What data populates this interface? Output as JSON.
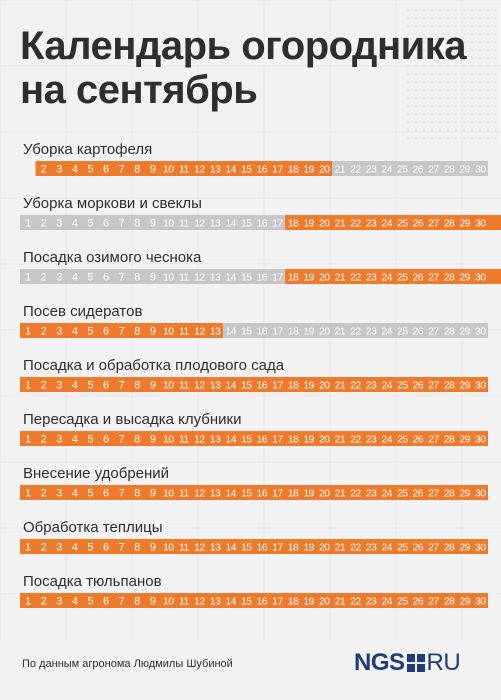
{
  "title": {
    "line1": "Календарь огородника",
    "line2": "на сентябрь"
  },
  "colors": {
    "active": "#f07a2c",
    "inactive": "#c7c7c7",
    "background": "#f2f2f2",
    "text": "#2e2e2e",
    "logo": "#1e3c78"
  },
  "chart_data": {
    "type": "calendar-gantt",
    "days": [
      2,
      3,
      4,
      5,
      6,
      7,
      8,
      9,
      10,
      11,
      12,
      13,
      14,
      15,
      16,
      17,
      18,
      19,
      20,
      21,
      22,
      23,
      24,
      25,
      26,
      27,
      28,
      29,
      30
    ],
    "tasks": [
      {
        "label": "Уборка картофеля",
        "first_day_shown": 2,
        "active_days": [
          2,
          20
        ]
      },
      {
        "label": "Уборка моркови и свеклы",
        "first_day_shown": 1,
        "active_days": [
          18,
          30
        ]
      },
      {
        "label": "Посадка озимого чеснока",
        "first_day_shown": 1,
        "active_days": [
          18,
          30
        ]
      },
      {
        "label": "Посев сидератов",
        "first_day_shown": 1,
        "active_days": [
          1,
          13
        ]
      },
      {
        "label": "Посадка и обработка плодового сада",
        "first_day_shown": 1,
        "active_days": [
          1,
          30
        ]
      },
      {
        "label": "Пересадка и высадка клубники",
        "first_day_shown": 1,
        "active_days": [
          1,
          30
        ]
      },
      {
        "label": "Внесение удобрений",
        "first_day_shown": 1,
        "active_days": [
          1,
          30
        ]
      },
      {
        "label": "Обработка теплицы",
        "first_day_shown": 1,
        "active_days": [
          1,
          30
        ]
      },
      {
        "label": "Посадка тюльпанов",
        "first_day_shown": 1,
        "active_days": [
          1,
          30
        ]
      }
    ]
  },
  "footer": {
    "source": "По данным агронома Людмилы Шубиной",
    "logo_left": "NGS",
    "logo_right": "RU"
  }
}
